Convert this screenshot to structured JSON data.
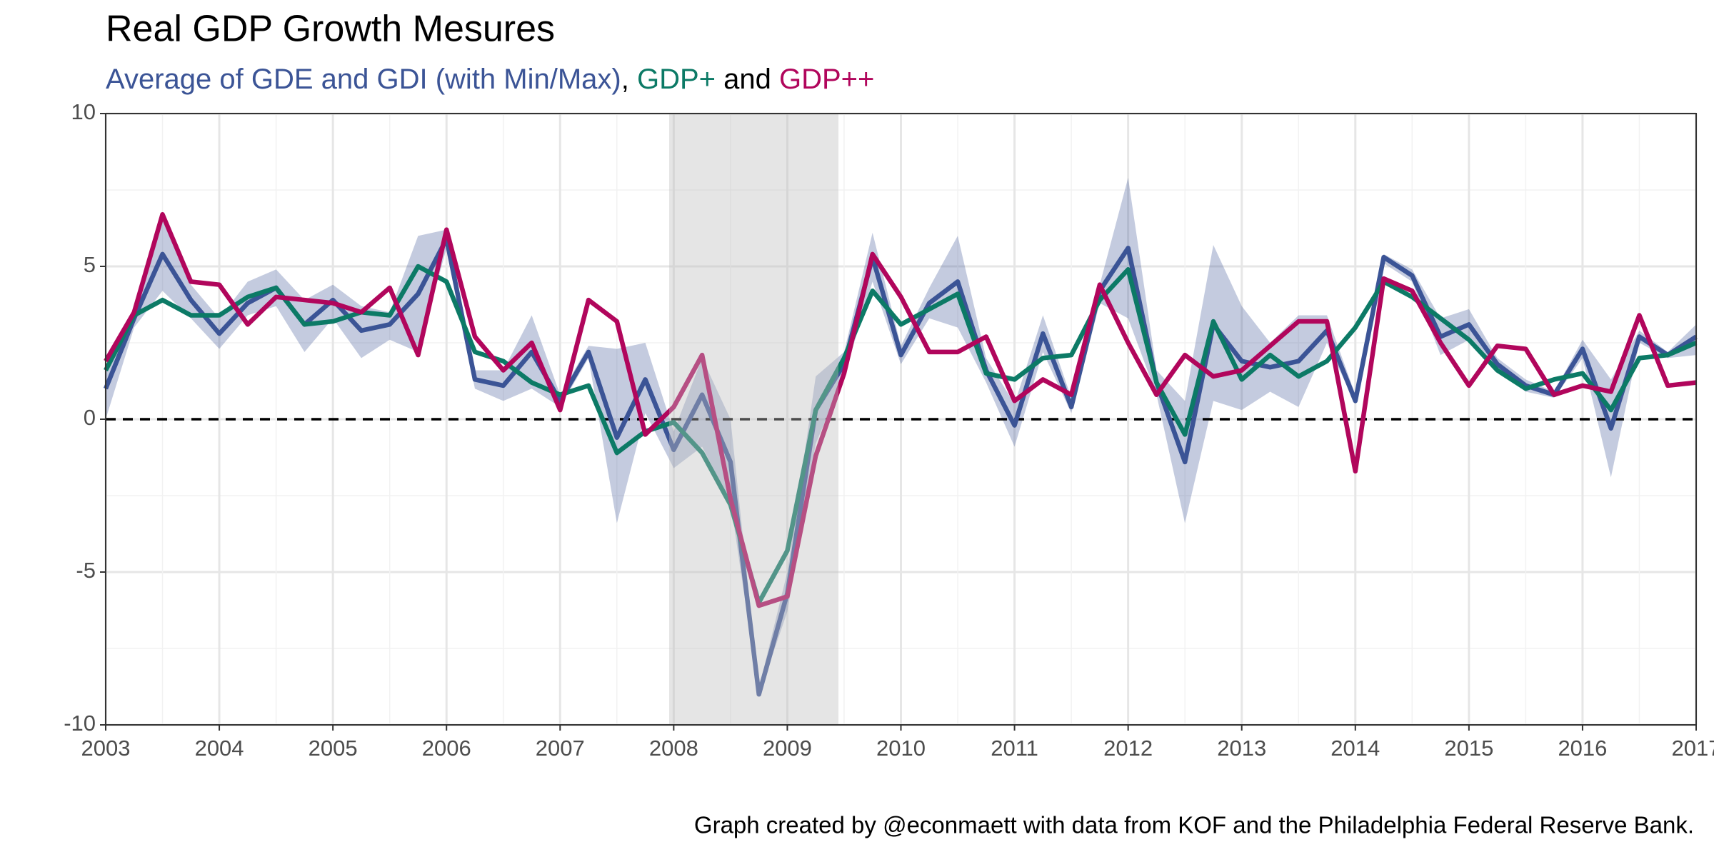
{
  "chart_data": {
    "type": "line",
    "title": "Real GDP Growth Mesures",
    "subtitle_joins": [
      ", ",
      " and "
    ],
    "caption": "Graph created by @econmaett with data from KOF and the Philadelphia Federal Reserve Bank.",
    "x": [
      2003,
      2003.25,
      2003.5,
      2003.75,
      2004,
      2004.25,
      2004.5,
      2004.75,
      2005,
      2005.25,
      2005.5,
      2005.75,
      2006,
      2006.25,
      2006.5,
      2006.75,
      2007,
      2007.25,
      2007.5,
      2007.75,
      2008,
      2008.25,
      2008.5,
      2008.75,
      2009,
      2009.25,
      2009.5,
      2009.75,
      2010,
      2010.25,
      2010.5,
      2010.75,
      2011,
      2011.25,
      2011.5,
      2011.75,
      2012,
      2012.25,
      2012.5,
      2012.75,
      2013,
      2013.25,
      2013.5,
      2013.75,
      2014,
      2014.25,
      2014.5,
      2014.75,
      2015,
      2015.25,
      2015.5,
      2015.75,
      2016,
      2016.25,
      2016.5,
      2016.75,
      2017
    ],
    "series": [
      {
        "name": "Average of GDE and GDI (with Min/Max)",
        "color": "#3b5496",
        "values": [
          1.0,
          3.3,
          5.4,
          3.9,
          2.8,
          3.8,
          4.3,
          3.1,
          3.9,
          2.9,
          3.1,
          4.1,
          5.9,
          1.3,
          1.1,
          2.2,
          0.6,
          2.2,
          -0.6,
          1.3,
          -1.0,
          0.8,
          -1.4,
          -9.0,
          -5.7,
          0.3,
          1.8,
          5.3,
          2.1,
          3.8,
          4.5,
          1.6,
          -0.2,
          2.8,
          0.4,
          4.2,
          5.6,
          1.2,
          -1.4,
          3.1,
          1.9,
          1.7,
          1.9,
          2.9,
          0.6,
          5.3,
          4.7,
          2.7,
          3.1,
          1.8,
          1.1,
          0.8,
          2.3,
          -0.3,
          2.7,
          2.1,
          2.7
        ],
        "min": [
          0.0,
          3.0,
          4.2,
          3.3,
          2.3,
          3.4,
          3.7,
          2.2,
          3.3,
          2.0,
          2.6,
          2.2,
          5.6,
          1.0,
          0.6,
          1.0,
          0.4,
          2.0,
          -3.4,
          0.2,
          -1.6,
          -0.9,
          -2.7,
          -9.0,
          -6.3,
          -0.8,
          1.4,
          4.5,
          1.8,
          3.3,
          3.0,
          1.2,
          -0.9,
          2.2,
          0.2,
          3.8,
          3.3,
          0.8,
          -3.4,
          0.6,
          0.3,
          0.9,
          0.4,
          2.5,
          0.5,
          5.1,
          4.5,
          2.1,
          2.6,
          1.6,
          0.9,
          0.7,
          2.0,
          -1.9,
          2.5,
          2.0,
          2.1
        ],
        "max": [
          1.6,
          3.6,
          6.5,
          4.4,
          3.3,
          4.5,
          4.9,
          3.9,
          4.4,
          3.7,
          3.5,
          6.0,
          6.2,
          1.6,
          1.6,
          3.4,
          0.8,
          2.4,
          2.3,
          2.5,
          -0.4,
          2.0,
          0.0,
          -8.8,
          -5.0,
          1.4,
          2.2,
          6.1,
          2.4,
          4.3,
          6.0,
          2.0,
          0.5,
          3.4,
          0.7,
          4.4,
          7.9,
          1.6,
          0.6,
          5.7,
          3.7,
          2.5,
          3.4,
          3.4,
          0.8,
          5.4,
          4.9,
          3.3,
          3.6,
          2.0,
          1.3,
          0.9,
          2.6,
          1.3,
          2.9,
          2.2,
          3.1
        ]
      },
      {
        "name": "GDP+",
        "color": "#0c7a66",
        "values": [
          1.6,
          3.4,
          3.9,
          3.4,
          3.4,
          4.0,
          4.3,
          3.1,
          3.2,
          3.5,
          3.4,
          5.0,
          4.5,
          2.2,
          1.9,
          1.2,
          0.8,
          1.1,
          -1.1,
          -0.4,
          -0.1,
          -1.1,
          -2.8,
          -6.0,
          -4.3,
          0.3,
          2.0,
          4.2,
          3.1,
          3.6,
          4.1,
          1.5,
          1.3,
          2.0,
          2.1,
          3.9,
          4.9,
          1.2,
          -0.5,
          3.2,
          1.3,
          2.1,
          1.4,
          1.9,
          3.0,
          4.5,
          4.0,
          3.3,
          2.6,
          1.6,
          1.0,
          1.3,
          1.5,
          0.3,
          2.0,
          2.1,
          2.5
        ]
      },
      {
        "name": "GDP++",
        "color": "#b1065c",
        "values": [
          1.9,
          3.5,
          6.7,
          4.5,
          4.4,
          3.1,
          4.0,
          3.9,
          3.8,
          3.5,
          4.3,
          2.1,
          6.2,
          2.7,
          1.6,
          2.5,
          0.3,
          3.9,
          3.2,
          -0.5,
          0.4,
          2.1,
          -2.6,
          -6.1,
          -5.8,
          -1.2,
          1.5,
          5.4,
          4.0,
          2.2,
          2.2,
          2.7,
          0.6,
          1.3,
          0.8,
          4.4,
          2.5,
          0.8,
          2.1,
          1.4,
          1.6,
          2.4,
          3.2,
          3.2,
          -1.7,
          4.6,
          4.2,
          2.5,
          1.1,
          2.4,
          2.3,
          0.8,
          1.1,
          0.9,
          3.4,
          1.1,
          1.2
        ]
      }
    ],
    "recession": [
      2007.96,
      2009.45
    ],
    "reference_line": 0,
    "xlim": [
      2003,
      2017
    ],
    "xticks": [
      2003,
      2004,
      2005,
      2006,
      2007,
      2008,
      2009,
      2010,
      2011,
      2012,
      2013,
      2014,
      2015,
      2016,
      2017
    ],
    "ylim": [
      -10,
      10
    ],
    "yticks": [
      -10,
      -5,
      0,
      5,
      10
    ],
    "grid": true
  }
}
